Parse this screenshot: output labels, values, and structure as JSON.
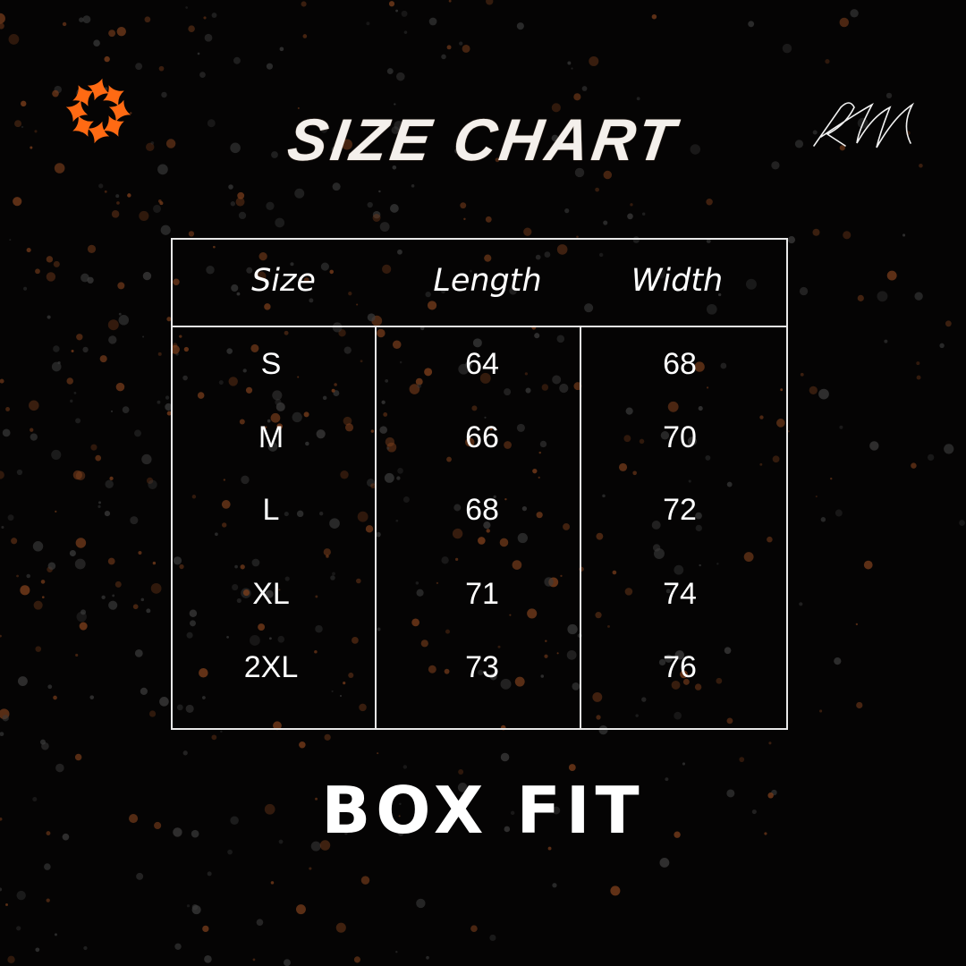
{
  "title": "SIZE CHART",
  "brand_logo_icon": "orange-starburst-logo",
  "signature_text": "RM",
  "colors": {
    "accent": "#ff6a13",
    "background": "#050404",
    "text": "#ffffff"
  },
  "table": {
    "headers": [
      "Size",
      "Length",
      "Width"
    ],
    "rows": [
      [
        "S",
        "64",
        "68"
      ],
      [
        "M",
        "66",
        "70"
      ],
      [
        "L",
        "68",
        "72"
      ],
      [
        "XL",
        "71",
        "74"
      ],
      [
        "2XL",
        "73",
        "76"
      ]
    ]
  },
  "footer": "BOX FIT"
}
